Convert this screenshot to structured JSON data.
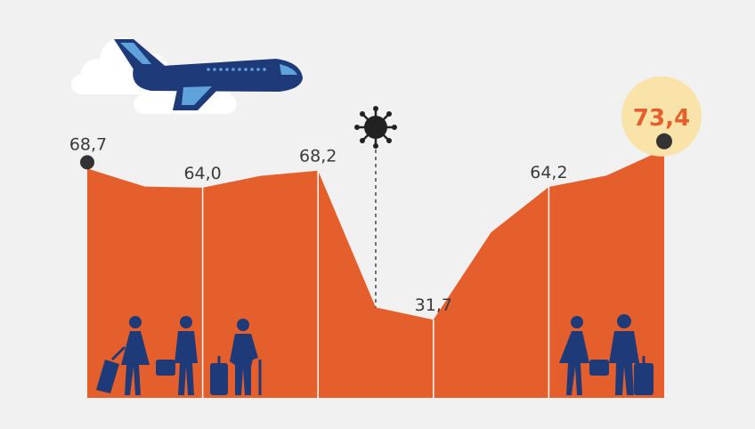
{
  "colors": {
    "background": "#f1f1f1",
    "area": "#e45f2b",
    "divider": "#ffffff",
    "label": "#3b3b3b",
    "marker": "#333333",
    "highlight_circle": "#fae3a8",
    "highlight_text": "#e45f2b",
    "navy": "#1f3a78",
    "light_blue": "#5fa3dc",
    "cloud": "#ffffff"
  },
  "icons": {
    "plane": "airplane-icon",
    "virus": "virus-icon",
    "clouds": "cloud-icon",
    "travellers": "traveller-silhouette-icon"
  },
  "chart_data": {
    "type": "area",
    "x": [
      0,
      1,
      2,
      3,
      4,
      5,
      6,
      7,
      8,
      9,
      10
    ],
    "values": [
      68.7,
      64.3,
      64.0,
      66.9,
      68.2,
      34.7,
      31.7,
      53.1,
      64.2,
      67.0,
      73.4
    ],
    "ylim": [
      0,
      80
    ],
    "grid": false,
    "labels": [
      {
        "index": 0,
        "text": "68,7",
        "marker": true
      },
      {
        "index": 2,
        "text": "64,0",
        "marker": false
      },
      {
        "index": 4,
        "text": "68,2",
        "marker": false
      },
      {
        "index": 6,
        "text": "31,7",
        "marker": false
      },
      {
        "index": 8,
        "text": "64,2",
        "marker": false
      },
      {
        "index": 10,
        "text": "73,4",
        "marker": true,
        "highlight": true
      }
    ],
    "dividers_at": [
      2,
      4,
      6,
      8
    ],
    "event_marker_index": 5
  }
}
